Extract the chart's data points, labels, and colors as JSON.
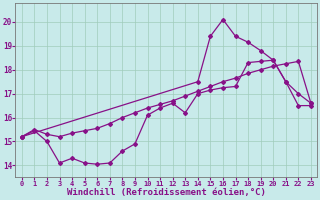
{
  "bg_color": "#c8eaea",
  "grid_color": "#a0ccbb",
  "line_color": "#881188",
  "marker": "D",
  "marker_size": 2.0,
  "line_width": 0.9,
  "xlabel": "Windchill (Refroidissement éolien,°C)",
  "xlabel_fontsize": 6.5,
  "xtick_fontsize": 5.0,
  "ytick_fontsize": 5.5,
  "xlim": [
    -0.5,
    23.5
  ],
  "ylim": [
    13.5,
    20.8
  ],
  "xticks": [
    0,
    1,
    2,
    3,
    4,
    5,
    6,
    7,
    8,
    9,
    10,
    11,
    12,
    13,
    14,
    15,
    16,
    17,
    18,
    19,
    20,
    21,
    22,
    23
  ],
  "yticks": [
    14,
    15,
    16,
    17,
    18,
    19,
    20
  ],
  "line1_x": [
    0,
    1,
    2,
    3,
    4,
    5,
    6,
    7,
    8,
    9,
    10,
    11,
    12,
    13,
    14,
    15,
    16,
    17,
    18,
    19,
    20,
    21,
    22,
    23
  ],
  "line1_y": [
    15.2,
    15.45,
    15.0,
    14.1,
    14.3,
    14.1,
    14.05,
    14.1,
    14.6,
    14.9,
    16.1,
    16.4,
    16.6,
    16.2,
    17.0,
    17.15,
    17.25,
    17.3,
    18.3,
    18.35,
    18.4,
    17.5,
    16.5,
    16.5
  ],
  "line2_x": [
    0,
    1,
    2,
    3,
    4,
    5,
    6,
    7,
    8,
    9,
    10,
    11,
    12,
    13,
    14,
    15,
    16,
    17,
    18,
    19,
    20,
    21,
    22,
    23
  ],
  "line2_y": [
    15.2,
    15.5,
    15.3,
    15.2,
    15.35,
    15.45,
    15.55,
    15.75,
    16.0,
    16.2,
    16.4,
    16.55,
    16.7,
    16.9,
    17.1,
    17.3,
    17.5,
    17.65,
    17.85,
    18.0,
    18.15,
    18.25,
    18.35,
    16.6
  ],
  "line3_x": [
    0,
    14,
    15,
    16,
    17,
    18,
    19,
    20,
    21,
    22,
    23
  ],
  "line3_y": [
    15.2,
    17.5,
    19.4,
    20.1,
    19.4,
    19.15,
    18.8,
    18.4,
    17.5,
    17.0,
    16.6
  ]
}
